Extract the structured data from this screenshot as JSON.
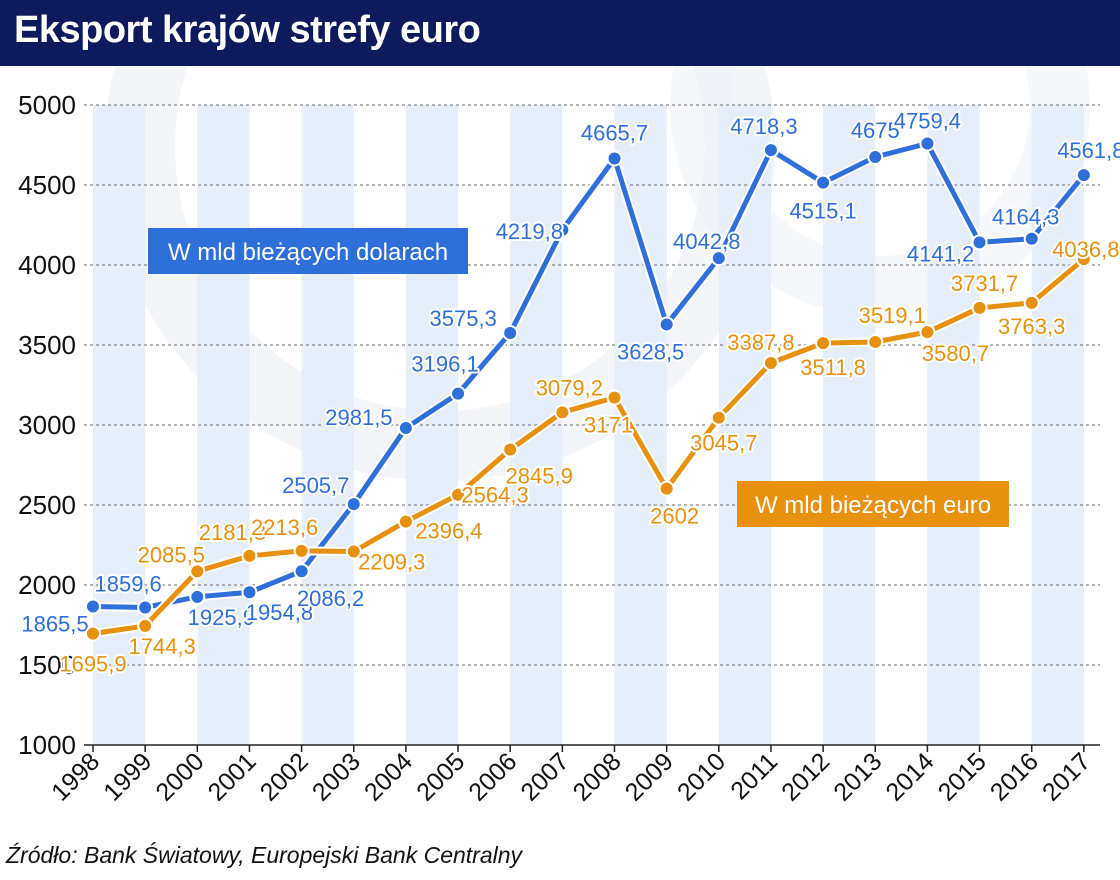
{
  "header": {
    "title": "Eksport krajów strefy euro"
  },
  "source": "Źródło: Bank Światowy, Europejski Bank Centralny",
  "colors": {
    "header_bg": "#0e1a5c",
    "usd": "#2e6fd9",
    "eur": "#e8900f",
    "band": "#e6eefa"
  },
  "chart_data": {
    "type": "line",
    "title": "Eksport krajów strefy euro",
    "ylim": [
      1000,
      5000
    ],
    "yticks": [
      1000,
      1500,
      2000,
      2500,
      3000,
      3500,
      4000,
      4500,
      5000
    ],
    "grid": true,
    "categories": [
      "1998",
      "1999",
      "2000",
      "2001",
      "2002",
      "2003",
      "2004",
      "2005",
      "2006",
      "2007",
      "2008",
      "2009",
      "2010",
      "2011",
      "2012",
      "2013",
      "2014",
      "2015",
      "2016",
      "2017"
    ],
    "series": [
      {
        "name": "W mld bieżących dolarach",
        "color": "#2e6fd9",
        "values": [
          1865.5,
          1859.6,
          1925.9,
          1954.8,
          2086.2,
          2505.7,
          2981.5,
          3196.1,
          3575.3,
          4219.8,
          4665.7,
          3628.5,
          4042.8,
          4718.3,
          4515.1,
          4675,
          4759.4,
          4141.2,
          4164.3,
          4561.8
        ],
        "labels": [
          "1865,5",
          "1859,6",
          "1925,9",
          "1954,8",
          "2086,2",
          "2505,7",
          "2981,5",
          "3196,1",
          "3575,3",
          "4219,8",
          "4665,7",
          "3628,5",
          "4042,8",
          "4718,3",
          "4515,1",
          "4675",
          "4759,4",
          "4141,2",
          "4164,3",
          "4561,8"
        ]
      },
      {
        "name": "W mld bieżących euro",
        "color": "#e8900f",
        "values": [
          1695.9,
          1744.3,
          2085.5,
          2181.8,
          2213.6,
          2209.3,
          2396.4,
          2564.3,
          2845.9,
          3079.2,
          3171,
          2602,
          3045.7,
          3387.8,
          3511.8,
          3519.1,
          3580.7,
          3731.7,
          3763.3,
          4036.8
        ],
        "labels": [
          "1695,9",
          "1744,3",
          "2085,5",
          "2181,8",
          "2213,6",
          "2209,3",
          "2396,4",
          "2564,3",
          "2845,9",
          "3079,2",
          "3171",
          "2602",
          "3045,7",
          "3387,8",
          "3511,8",
          "3519,1",
          "3580,7",
          "3731,7",
          "3763,3",
          "4036,8"
        ]
      }
    ]
  }
}
